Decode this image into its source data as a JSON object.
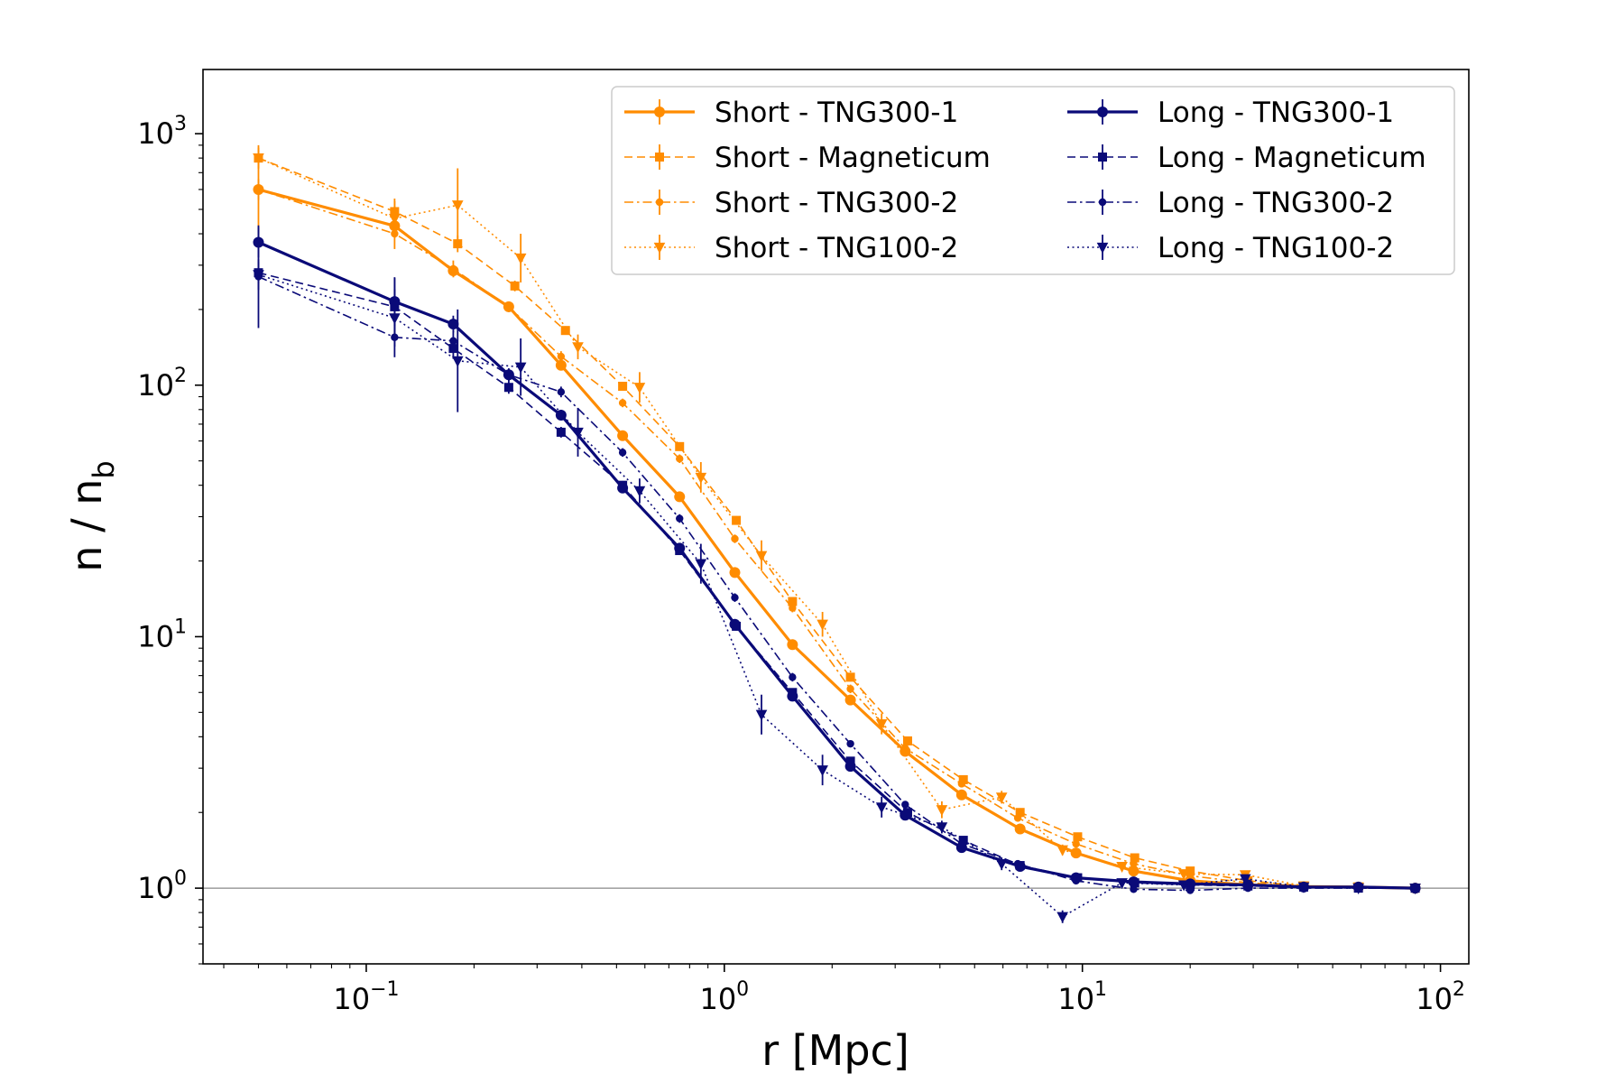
{
  "chart_data": {
    "type": "line",
    "xscale": "log",
    "yscale": "log",
    "xlabel": "r [Mpc]",
    "ylabel_main": "n / n",
    "ylabel_sub": "b",
    "xlim": [
      0.035,
      120
    ],
    "ylim": [
      0.5,
      1800
    ],
    "reference_line_y": 1,
    "x_ticks": [
      {
        "value": 0.1,
        "base": "10",
        "exp": "−1"
      },
      {
        "value": 1,
        "base": "10",
        "exp": "0"
      },
      {
        "value": 10,
        "base": "10",
        "exp": "1"
      },
      {
        "value": 100,
        "base": "10",
        "exp": "2"
      }
    ],
    "y_ticks": [
      {
        "value": 1,
        "base": "10",
        "exp": "0"
      },
      {
        "value": 10,
        "base": "10",
        "exp": "1"
      },
      {
        "value": 100,
        "base": "10",
        "exp": "2"
      },
      {
        "value": 1000,
        "base": "10",
        "exp": "3"
      }
    ],
    "series": [
      {
        "name": "Short - TNG300-1",
        "color": "#ff8c00",
        "linestyle": "solid",
        "marker": "circle",
        "width": 3.2,
        "msize": 6,
        "x": [
          0.05,
          0.12,
          0.175,
          0.25,
          0.35,
          0.52,
          0.75,
          1.07,
          1.55,
          2.25,
          3.2,
          4.6,
          6.7,
          9.6,
          13.9,
          20,
          29,
          41.5,
          59,
          85
        ],
        "y": [
          600,
          430,
          285,
          205,
          120,
          63,
          36,
          18,
          9.3,
          5.6,
          3.5,
          2.35,
          1.72,
          1.38,
          1.17,
          1.07,
          1.03,
          1.015,
          1.01,
          1.0
        ],
        "err": [
          1.5,
          1.08,
          1.06,
          1.04,
          1.04,
          1.03,
          1.03,
          1.03,
          1.03,
          1.03,
          1.02,
          1.02,
          1.02,
          1.01,
          1.01,
          1.01,
          1.01,
          1.005,
          1.005,
          1.005
        ]
      },
      {
        "name": "Short - Magneticum",
        "color": "#ff8c00",
        "linestyle": "dashed",
        "marker": "square",
        "width": 1.6,
        "msize": 5,
        "x": [
          0.05,
          0.12,
          0.18,
          0.26,
          0.36,
          0.52,
          0.75,
          1.08,
          1.55,
          2.25,
          3.25,
          4.65,
          6.7,
          9.7,
          14,
          20,
          29,
          41.5,
          59,
          85
        ],
        "y": [
          800,
          490,
          365,
          248,
          165,
          99,
          57,
          29,
          13.8,
          6.9,
          3.85,
          2.7,
          2.0,
          1.6,
          1.32,
          1.17,
          1.07,
          1.02,
          1.01,
          1.0
        ],
        "err": [
          1.1,
          1.1,
          1.08,
          1.05,
          1.04,
          1.04,
          1.04,
          1.04,
          1.04,
          1.04,
          1.03,
          1.03,
          1.02,
          1.02,
          1.01,
          1.01,
          1.01,
          1.005,
          1.005,
          1.005
        ]
      },
      {
        "name": "Short - TNG300-2",
        "color": "#ff8c00",
        "linestyle": "dashdot",
        "marker": "smallcircle",
        "width": 1.6,
        "msize": 4,
        "x": [
          0.05,
          0.12,
          0.175,
          0.25,
          0.35,
          0.52,
          0.75,
          1.07,
          1.55,
          2.25,
          3.2,
          4.6,
          6.6,
          9.6,
          13.9,
          20,
          29,
          41.5,
          59,
          85
        ],
        "y": [
          600,
          400,
          290,
          205,
          130,
          85,
          51,
          24.5,
          13,
          6.2,
          3.6,
          2.6,
          1.9,
          1.5,
          1.25,
          1.12,
          1.05,
          1.02,
          1.01,
          1.0
        ],
        "err": [
          1.1,
          1.15,
          1.08,
          1.05,
          1.05,
          1.04,
          1.04,
          1.04,
          1.04,
          1.04,
          1.03,
          1.03,
          1.02,
          1.02,
          1.02,
          1.01,
          1.01,
          1.005,
          1.005,
          1.005
        ]
      },
      {
        "name": "Short - TNG100-2",
        "color": "#ff8c00",
        "linestyle": "dotted",
        "marker": "triangle",
        "width": 1.6,
        "msize": 6,
        "x": [
          0.05,
          0.12,
          0.18,
          0.27,
          0.39,
          0.58,
          0.86,
          1.27,
          1.88,
          2.75,
          4.05,
          5.95,
          8.8,
          12.9,
          19.2,
          28.5,
          41.5,
          59,
          85
        ],
        "y": [
          800,
          460,
          520,
          320,
          142,
          98,
          43,
          21,
          11.2,
          4.5,
          2.05,
          2.3,
          1.42,
          1.22,
          1.14,
          1.13,
          1.02,
          1.01,
          1.0
        ],
        "err": [
          1.1,
          1.2,
          1.4,
          1.25,
          1.12,
          1.15,
          1.15,
          1.15,
          1.12,
          1.1,
          1.08,
          1.06,
          1.05,
          1.03,
          1.03,
          1.02,
          1.01,
          1.005,
          1.005
        ]
      },
      {
        "name": "Long - TNG300-1",
        "color": "#0a0a78",
        "linestyle": "solid",
        "marker": "circle",
        "width": 3.2,
        "msize": 6,
        "x": [
          0.05,
          0.12,
          0.175,
          0.25,
          0.35,
          0.52,
          0.75,
          1.07,
          1.55,
          2.25,
          3.2,
          4.6,
          6.7,
          9.6,
          13.9,
          20,
          29,
          41.5,
          59,
          85
        ],
        "y": [
          370,
          215,
          175,
          110,
          76,
          39,
          22.5,
          11.2,
          5.8,
          3.05,
          1.95,
          1.45,
          1.22,
          1.1,
          1.06,
          1.04,
          1.03,
          1.01,
          1.01,
          1.0
        ],
        "err": [
          1.15,
          1.25,
          1.08,
          1.06,
          1.05,
          1.04,
          1.04,
          1.04,
          1.04,
          1.03,
          1.03,
          1.02,
          1.02,
          1.01,
          1.01,
          1.01,
          1.01,
          1.005,
          1.005,
          1.005
        ]
      },
      {
        "name": "Long - Magneticum",
        "color": "#0a0a78",
        "linestyle": "dashed",
        "marker": "square",
        "width": 1.6,
        "msize": 5,
        "x": [
          0.05,
          0.12,
          0.175,
          0.25,
          0.35,
          0.52,
          0.75,
          1.08,
          1.55,
          2.25,
          3.25,
          4.65,
          6.7,
          9.7,
          14,
          20,
          29,
          41.5,
          59,
          85
        ],
        "y": [
          280,
          205,
          140,
          98,
          65,
          40,
          22,
          11,
          6.0,
          3.2,
          2.0,
          1.55,
          1.23,
          1.1,
          1.05,
          1.03,
          1.02,
          1.01,
          1.0,
          1.0
        ],
        "err": [
          1.1,
          1.3,
          1.1,
          1.06,
          1.05,
          1.04,
          1.04,
          1.04,
          1.04,
          1.03,
          1.03,
          1.02,
          1.02,
          1.01,
          1.01,
          1.01,
          1.01,
          1.005,
          1.005,
          1.005
        ]
      },
      {
        "name": "Long - TNG300-2",
        "color": "#0a0a78",
        "linestyle": "dashdot",
        "marker": "smallcircle",
        "width": 1.6,
        "msize": 4,
        "x": [
          0.05,
          0.12,
          0.175,
          0.25,
          0.35,
          0.52,
          0.75,
          1.07,
          1.55,
          2.25,
          3.2,
          4.6,
          6.6,
          9.6,
          13.9,
          20,
          29,
          41.5,
          59,
          85
        ],
        "y": [
          270,
          155,
          150,
          110,
          94,
          54,
          29.5,
          14.3,
          6.9,
          3.75,
          2.15,
          1.5,
          1.25,
          1.07,
          0.99,
          0.98,
          1.0,
          1.0,
          1.0,
          1.0
        ],
        "err": [
          1.6,
          1.2,
          1.1,
          1.06,
          1.05,
          1.04,
          1.04,
          1.04,
          1.04,
          1.03,
          1.03,
          1.02,
          1.02,
          1.02,
          1.01,
          1.01,
          1.01,
          1.005,
          1.005,
          1.005
        ]
      },
      {
        "name": "Long - TNG100-2",
        "color": "#0a0a78",
        "linestyle": "dotted",
        "marker": "triangle",
        "width": 1.6,
        "msize": 6,
        "x": [
          0.05,
          0.12,
          0.18,
          0.27,
          0.39,
          0.58,
          0.86,
          1.27,
          1.88,
          2.75,
          4.05,
          5.95,
          8.8,
          12.9,
          19.2,
          28.5,
          41.5,
          59,
          85
        ],
        "y": [
          275,
          185,
          125,
          118,
          65,
          38,
          19.5,
          4.9,
          2.95,
          2.1,
          1.75,
          1.25,
          0.77,
          1.05,
          1.03,
          1.09,
          1.01,
          1.0,
          1.0
        ],
        "err": [
          1.15,
          1.3,
          1.6,
          1.3,
          1.25,
          1.12,
          1.2,
          1.2,
          1.15,
          1.1,
          1.06,
          1.06,
          1.06,
          1.03,
          1.02,
          1.02,
          1.01,
          1.005,
          1.005
        ]
      }
    ]
  }
}
